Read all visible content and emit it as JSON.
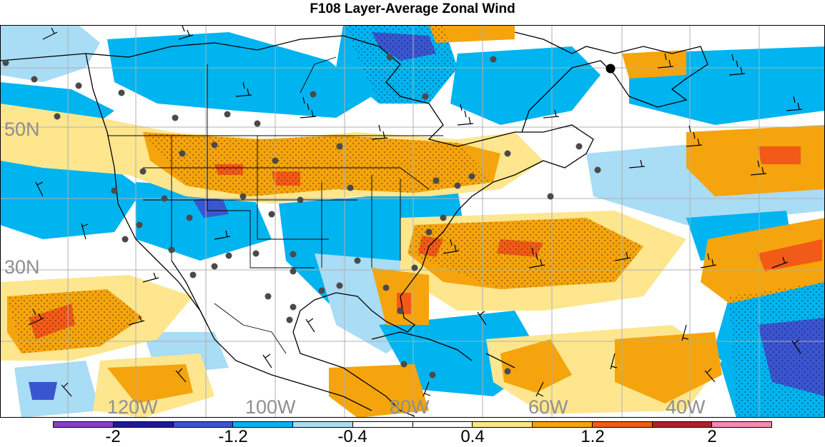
{
  "title": "F108 Layer-Average Zonal Wind",
  "map": {
    "lat_labels": [
      "50N",
      "30N"
    ],
    "lon_labels": [
      "120W",
      "100W",
      "80W",
      "60W",
      "40W"
    ],
    "label_color": "#8f8f8f",
    "marker_icon": "station-dot-icon",
    "barb_icon": "wind-barb-icon"
  },
  "colorbar": {
    "colors": [
      "#8a3fc9",
      "#1e1a96",
      "#3a55d0",
      "#00b4f0",
      "#a9dcf5",
      "#ffffff",
      "#ffffff",
      "#fde68e",
      "#f5a40d",
      "#f25a17",
      "#b22222",
      "#f28ab4"
    ],
    "tick_labels": [
      "-2",
      "-1.2",
      "-0.4",
      "0.4",
      "1.2",
      "2"
    ]
  }
}
